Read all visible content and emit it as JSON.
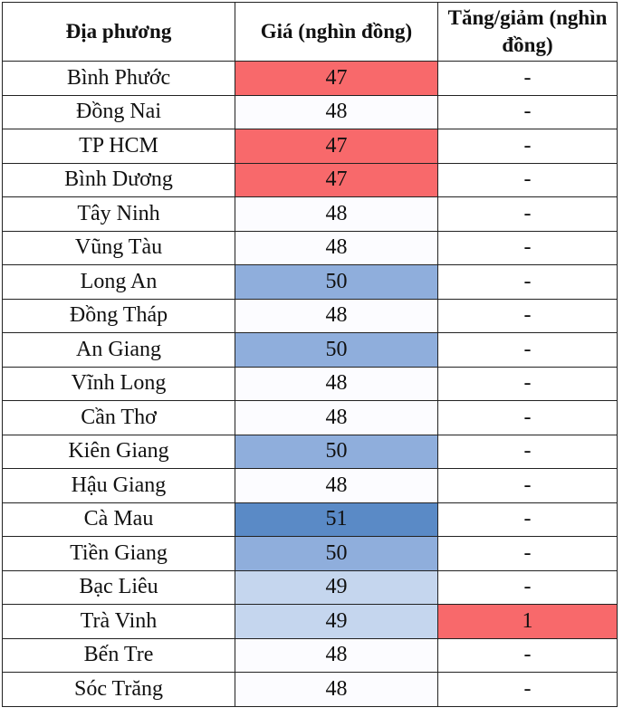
{
  "headers": [
    "Địa phương",
    "Giá (nghìn đồng)",
    "Tăng/giảm (nghìn đồng)"
  ],
  "colors": {
    "47": "#f8696b",
    "48": "#fcfcff",
    "49": "#c5d6ee",
    "50": "#8faedc",
    "51": "#5a8ac6",
    "increase": "#f8696b"
  },
  "rows": [
    {
      "region": "Bình Phước",
      "price": "47",
      "change": "-"
    },
    {
      "region": "Đồng Nai",
      "price": "48",
      "change": "-"
    },
    {
      "region": "TP HCM",
      "price": "47",
      "change": "-"
    },
    {
      "region": "Bình Dương",
      "price": "47",
      "change": "-"
    },
    {
      "region": "Tây Ninh",
      "price": "48",
      "change": "-"
    },
    {
      "region": "Vũng Tàu",
      "price": "48",
      "change": "-"
    },
    {
      "region": "Long An",
      "price": "50",
      "change": "-"
    },
    {
      "region": "Đồng Tháp",
      "price": "48",
      "change": "-"
    },
    {
      "region": "An Giang",
      "price": "50",
      "change": "-"
    },
    {
      "region": "Vĩnh Long",
      "price": "48",
      "change": "-"
    },
    {
      "region": "Cần Thơ",
      "price": "48",
      "change": "-"
    },
    {
      "region": "Kiên Giang",
      "price": "50",
      "change": "-"
    },
    {
      "region": "Hậu Giang",
      "price": "48",
      "change": "-"
    },
    {
      "region": "Cà Mau",
      "price": "51",
      "change": "-"
    },
    {
      "region": "Tiền Giang",
      "price": "50",
      "change": "-"
    },
    {
      "region": "Bạc Liêu",
      "price": "49",
      "change": "-"
    },
    {
      "region": "Trà Vinh",
      "price": "49",
      "change": "1"
    },
    {
      "region": "Bến Tre",
      "price": "48",
      "change": "-"
    },
    {
      "region": "Sóc Trăng",
      "price": "48",
      "change": "-"
    }
  ]
}
